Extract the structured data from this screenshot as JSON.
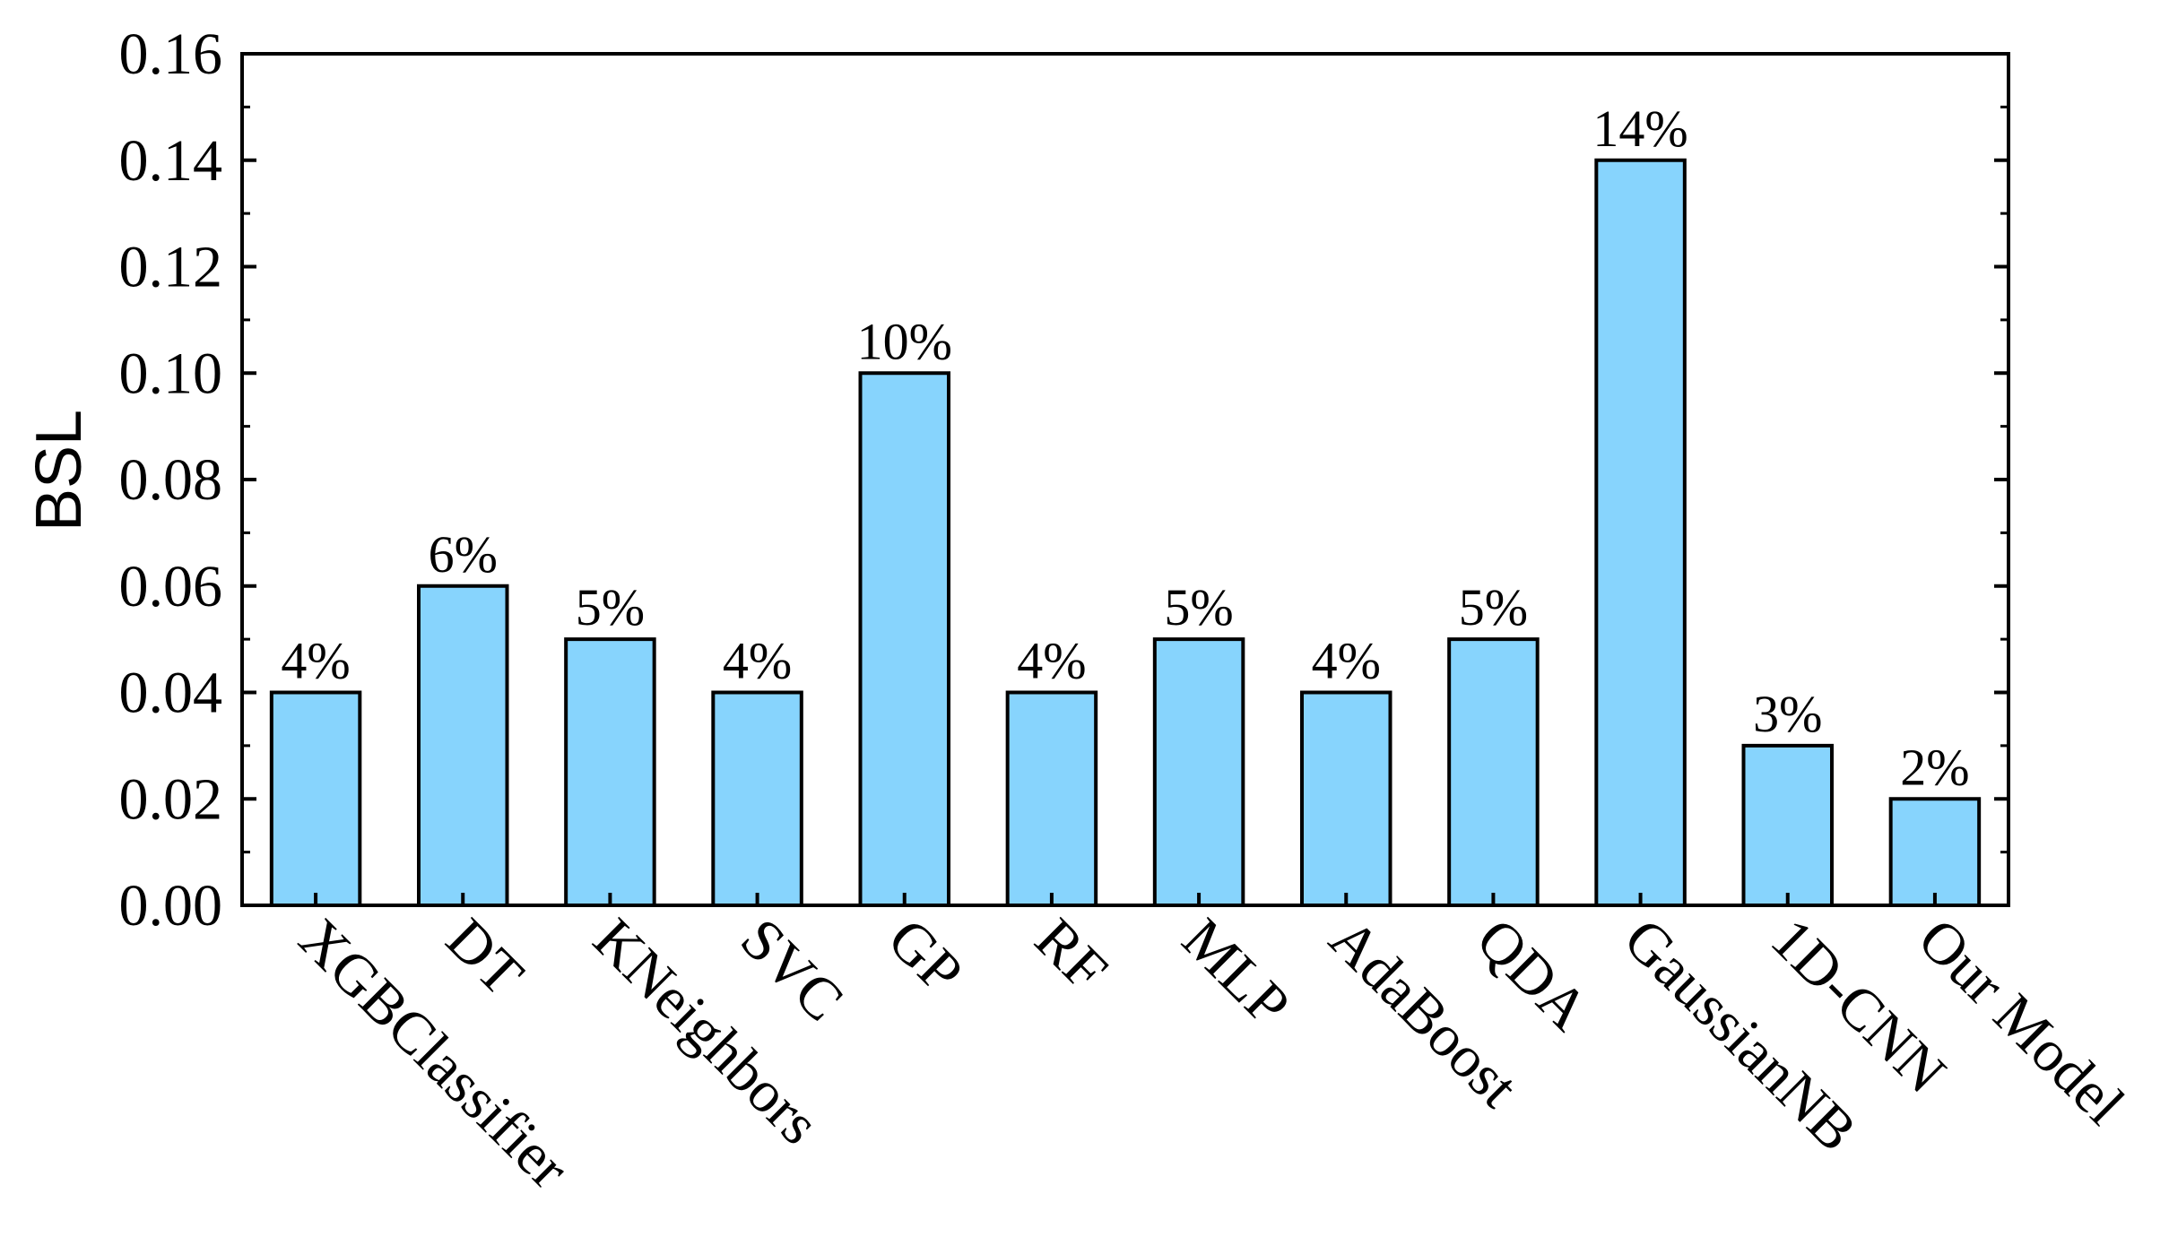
{
  "chart_data": {
    "type": "bar",
    "categories": [
      "XGBClassifier",
      "DT",
      "KNeighbors",
      "SVC",
      "GP",
      "RF",
      "MLP",
      "AdaBoost",
      "QDA",
      "GaussianNB",
      "1D-CNN",
      "Our Model"
    ],
    "values": [
      0.04,
      0.06,
      0.05,
      0.04,
      0.1,
      0.04,
      0.05,
      0.04,
      0.05,
      0.14,
      0.03,
      0.02
    ],
    "data_labels": [
      "4%",
      "6%",
      "5%",
      "4%",
      "10%",
      "4%",
      "5%",
      "4%",
      "5%",
      "14%",
      "3%",
      "2%"
    ],
    "title": "",
    "xlabel": "",
    "ylabel": "BSL",
    "ylim": [
      0,
      0.16
    ],
    "yticks": [
      "0.00",
      "0.02",
      "0.04",
      "0.06",
      "0.08",
      "0.10",
      "0.12",
      "0.14",
      "0.16"
    ],
    "ytick_values": [
      0,
      0.02,
      0.04,
      0.06,
      0.08,
      0.1,
      0.12,
      0.14,
      0.16
    ],
    "grid": false,
    "legend": "none",
    "bar_color": "#87D4FD",
    "bar_edge_color": "#000000"
  }
}
